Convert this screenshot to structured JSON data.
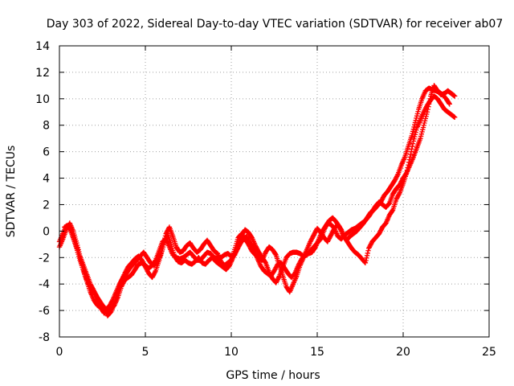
{
  "chart_data": {
    "type": "scatter",
    "title": "Day 303 of 2022, Sidereal Day-to-day VTEC variation (SDTVAR) for receiver ab07",
    "xlabel": "GPS time / hours",
    "ylabel": "SDTVAR / TECUs",
    "xlim": [
      0,
      25
    ],
    "ylim": [
      -8,
      14
    ],
    "xticks": [
      0,
      5,
      10,
      15,
      20,
      25
    ],
    "yticks": [
      -8,
      -6,
      -4,
      -2,
      0,
      2,
      4,
      6,
      8,
      10,
      12,
      14
    ],
    "grid": true,
    "legend": "none",
    "marker": "plus",
    "color": "#ff0000",
    "series": [
      {
        "x": [
          0,
          0.2,
          0.4,
          0.6,
          0.8,
          1.0,
          1.2,
          1.4,
          1.6,
          1.8,
          2.0,
          2.2,
          2.4,
          2.6,
          2.8,
          3.0,
          3.2,
          3.4,
          3.6,
          3.8,
          4.0,
          4.2,
          4.4,
          4.6,
          4.8,
          5.0,
          5.2,
          5.4,
          5.6,
          5.8,
          6.0,
          6.2,
          6.4,
          6.6,
          6.8,
          7.0,
          7.2,
          7.4,
          7.6,
          7.8,
          8.0,
          8.2,
          8.4,
          8.6,
          8.8,
          9.0,
          9.2,
          9.4,
          9.6,
          9.8,
          10.0,
          10.2,
          10.4,
          10.6,
          10.8,
          11.0,
          11.2,
          11.4,
          11.6,
          11.8,
          12.0,
          12.2,
          12.4,
          12.6,
          12.8,
          13.0,
          13.2,
          13.4,
          13.6,
          13.8,
          14.0,
          14.2,
          14.4,
          14.6,
          14.8,
          15.0,
          15.2,
          15.4,
          15.6,
          15.8,
          16.0,
          16.2,
          16.4,
          16.6,
          16.8,
          17.0,
          17.2,
          17.4,
          17.6,
          17.8,
          18.0,
          18.2,
          18.4,
          18.6,
          18.8,
          19.0,
          19.2,
          19.4,
          19.6,
          19.8,
          20.0,
          20.2,
          20.4,
          20.6,
          20.8,
          21.0,
          21.2,
          21.4,
          21.6,
          21.8,
          22.0,
          22.2,
          22.4,
          22.6,
          22.8,
          23.0
        ],
        "y": [
          -0.8,
          -0.2,
          0.4,
          0.2,
          -0.5,
          -1.3,
          -2.2,
          -3.0,
          -3.8,
          -4.6,
          -5.2,
          -5.6,
          -5.8,
          -6.2,
          -6.0,
          -5.9,
          -5.6,
          -5.0,
          -4.2,
          -3.7,
          -3.5,
          -3.3,
          -2.9,
          -2.5,
          -2.4,
          -2.6,
          -2.8,
          -2.6,
          -2.2,
          -1.5,
          -0.8,
          -0.6,
          -1.2,
          -1.8,
          -2.0,
          -2.1,
          -2.0,
          -1.8,
          -1.6,
          -1.9,
          -2.2,
          -2.2,
          -1.9,
          -1.6,
          -1.7,
          -2.0,
          -2.1,
          -2.0,
          -1.8,
          -1.7,
          -1.9,
          -1.8,
          -1.0,
          -0.3,
          0.1,
          -0.1,
          -0.5,
          -1.1,
          -1.6,
          -2.0,
          -2.4,
          -3.1,
          -3.6,
          -3.9,
          -3.4,
          -2.7,
          -2.0,
          -1.7,
          -1.6,
          -1.6,
          -1.7,
          -1.9,
          -1.8,
          -1.5,
          -1.2,
          -0.9,
          -0.6,
          0.1,
          0.6,
          0.5,
          0.2,
          -0.4,
          -0.6,
          -0.3,
          -0.1,
          0.1,
          0.2,
          0.4,
          0.6,
          0.8,
          1.1,
          1.5,
          1.9,
          2.2,
          2.0,
          1.8,
          2.1,
          2.8,
          3.2,
          3.5,
          4.0,
          4.4,
          5.0,
          5.6,
          6.3,
          7.0,
          8.0,
          9.0,
          10.2,
          11.0,
          10.6,
          10.3,
          10.4,
          10.6,
          10.4,
          10.2
        ]
      },
      {
        "x": [
          0,
          0.2,
          0.4,
          0.6,
          0.8,
          1.0,
          1.2,
          1.4,
          1.6,
          1.8,
          2.0,
          2.2,
          2.4,
          2.6,
          2.8,
          3.0,
          3.2,
          3.4,
          3.6,
          3.8,
          4.0,
          4.2,
          4.4,
          4.6,
          4.8,
          5.0,
          5.2,
          5.4,
          5.6,
          5.8,
          6.0,
          6.2,
          6.4,
          6.6,
          6.8,
          7.0,
          7.2,
          7.4,
          7.6,
          7.8,
          8.0,
          8.2,
          8.4,
          8.6,
          8.8,
          9.0,
          9.2,
          9.4,
          9.6,
          9.8,
          10.0,
          10.2,
          10.4,
          10.6,
          10.8,
          11.0,
          11.2,
          11.4,
          11.6,
          11.8,
          12.0,
          12.2,
          12.4,
          12.6,
          12.8,
          13.0,
          13.2,
          13.4,
          13.6,
          13.8,
          14.0,
          14.2,
          14.4,
          14.6,
          14.8,
          15.0,
          15.2,
          15.4,
          15.6,
          15.8,
          16.0,
          16.2,
          16.4,
          16.6,
          16.8,
          17.0,
          17.2,
          17.4,
          17.6,
          17.8,
          18.0,
          18.2,
          18.4,
          18.6,
          18.8,
          19.0,
          19.2,
          19.4,
          19.6,
          19.8,
          20.0,
          20.2,
          20.4,
          20.6,
          20.8,
          21.0,
          21.2,
          21.4,
          21.6,
          21.8,
          22.0,
          22.2,
          22.4,
          22.6,
          22.8,
          23.0
        ],
        "y": [
          -1.2,
          -0.6,
          0.1,
          0.6,
          0.0,
          -0.9,
          -1.9,
          -2.6,
          -3.3,
          -4.0,
          -4.5,
          -5.0,
          -5.4,
          -5.8,
          -6.4,
          -6.1,
          -5.5,
          -4.6,
          -3.8,
          -3.2,
          -2.7,
          -2.4,
          -2.1,
          -1.9,
          -2.2,
          -2.7,
          -3.2,
          -3.5,
          -3.0,
          -2.2,
          -1.2,
          -0.2,
          0.3,
          -0.4,
          -1.2,
          -1.6,
          -1.5,
          -1.1,
          -0.9,
          -1.3,
          -1.6,
          -1.4,
          -1.0,
          -0.7,
          -1.1,
          -1.5,
          -1.7,
          -2.3,
          -2.6,
          -2.4,
          -2.2,
          -1.4,
          -0.5,
          -0.2,
          -0.6,
          -1.0,
          -1.5,
          -1.8,
          -2.0,
          -2.2,
          -1.6,
          -1.2,
          -1.4,
          -1.8,
          -2.6,
          -3.4,
          -4.2,
          -4.6,
          -4.0,
          -3.4,
          -2.6,
          -2.0,
          -1.4,
          -0.8,
          -0.3,
          0.2,
          -0.1,
          -0.5,
          -0.8,
          -0.3,
          0.2,
          0.5,
          0.1,
          -0.5,
          -0.9,
          -1.3,
          -1.6,
          -1.8,
          -2.1,
          -2.4,
          -1.3,
          -0.8,
          -0.5,
          -0.2,
          0.3,
          0.6,
          1.2,
          1.6,
          2.4,
          2.9,
          3.6,
          4.4,
          5.6,
          6.8,
          7.8,
          8.4,
          9.0,
          9.5,
          9.9,
          10.2,
          10.0,
          9.6,
          9.2,
          9.0,
          8.8,
          8.6
        ]
      },
      {
        "x": [
          0.3,
          0.5,
          0.7,
          0.9,
          1.1,
          1.3,
          1.5,
          1.7,
          1.9,
          2.1,
          2.3,
          2.5,
          2.7,
          2.9,
          3.1,
          3.3,
          3.5,
          3.7,
          3.9,
          4.1,
          4.3,
          4.5,
          4.7,
          4.9,
          5.1,
          5.3,
          5.5,
          5.7,
          5.9,
          6.1,
          6.3,
          6.5,
          6.7,
          6.9,
          7.1,
          7.3,
          7.5,
          7.7,
          7.9,
          8.1,
          8.3,
          8.5,
          8.7,
          8.9,
          9.1,
          9.3,
          9.5,
          9.7,
          9.9,
          10.1,
          10.3,
          10.5,
          10.7,
          10.9,
          11.1,
          11.3,
          11.5,
          11.7,
          11.9,
          12.1,
          12.3,
          12.5,
          12.7,
          12.9,
          13.1,
          13.3,
          13.5,
          13.7,
          13.9,
          14.1,
          14.3,
          14.5,
          14.7,
          14.9,
          15.1,
          15.3,
          15.5,
          15.7,
          15.9,
          16.1,
          16.3,
          16.5,
          16.7,
          16.9,
          17.1,
          17.3,
          17.5,
          17.7,
          17.9,
          18.1,
          18.3,
          18.5,
          18.7,
          18.9,
          19.1,
          19.3,
          19.5,
          19.7,
          19.9,
          20.1,
          20.3,
          20.5,
          20.7,
          20.9,
          21.1,
          21.3,
          21.5,
          21.7,
          21.9,
          22.1,
          22.3,
          22.5,
          22.7
        ],
        "y": [
          0.3,
          0.4,
          0.0,
          -0.8,
          -1.6,
          -2.4,
          -3.4,
          -4.0,
          -4.4,
          -4.8,
          -5.3,
          -5.6,
          -5.9,
          -5.7,
          -5.2,
          -4.6,
          -4.0,
          -3.5,
          -3.2,
          -2.8,
          -2.5,
          -2.2,
          -1.9,
          -1.6,
          -2.0,
          -2.4,
          -2.6,
          -2.3,
          -1.8,
          -0.9,
          -0.2,
          -1.0,
          -1.9,
          -2.3,
          -2.4,
          -2.2,
          -2.4,
          -2.5,
          -2.3,
          -2.0,
          -2.4,
          -2.5,
          -2.2,
          -2.0,
          -2.3,
          -2.5,
          -2.7,
          -2.9,
          -2.6,
          -2.0,
          -1.5,
          -1.0,
          -0.6,
          -0.4,
          -0.9,
          -1.4,
          -2.0,
          -2.6,
          -3.0,
          -3.2,
          -3.4,
          -3.0,
          -2.5,
          -2.4,
          -2.8,
          -3.2,
          -3.5,
          -3.2,
          -2.6,
          -2.1,
          -1.8,
          -1.7,
          -1.6,
          -1.2,
          -0.6,
          0.0,
          0.4,
          0.8,
          1.0,
          0.7,
          0.3,
          -0.3,
          -0.7,
          -0.4,
          -0.2,
          0.0,
          0.3,
          0.6,
          1.0,
          1.4,
          1.6,
          1.9,
          2.2,
          2.7,
          3.0,
          3.4,
          3.8,
          4.3,
          5.0,
          5.6,
          6.4,
          7.2,
          8.2,
          9.2,
          10.0,
          10.6,
          10.8,
          10.7,
          10.6,
          10.5,
          10.3,
          10.0,
          9.6
        ]
      }
    ]
  }
}
